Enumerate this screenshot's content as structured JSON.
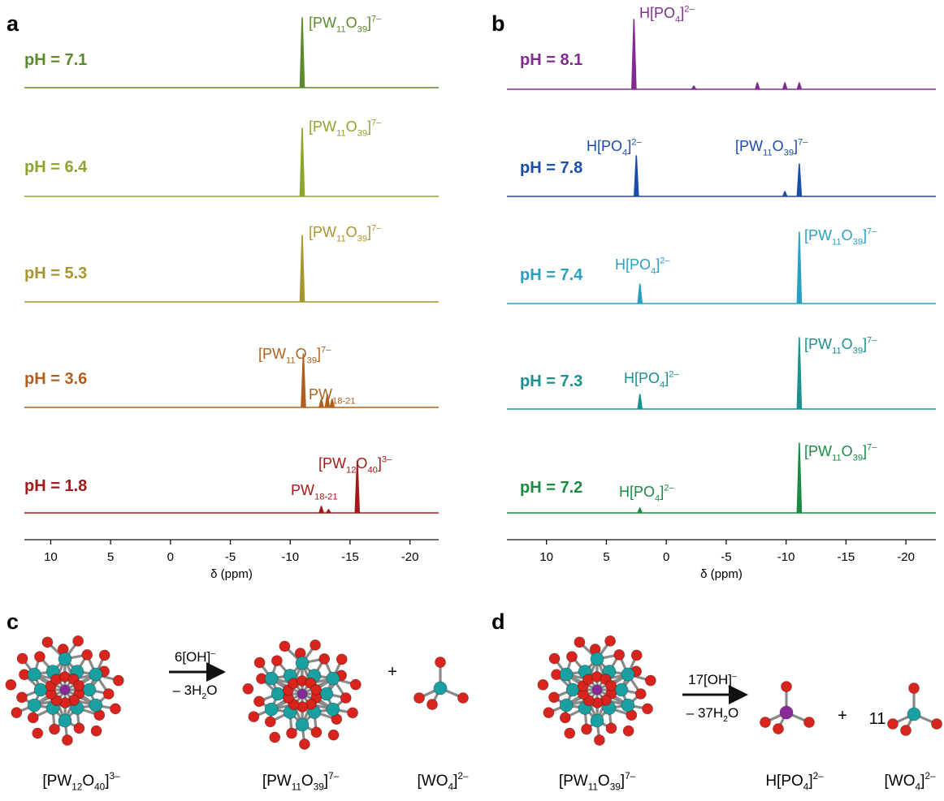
{
  "panel_labels": [
    "a",
    "b",
    "c",
    "d"
  ],
  "chart_data": [
    {
      "type": "spectrum",
      "x_label": "δ (ppm)",
      "xlim": [
        12.2,
        -22.4
      ],
      "xticks": [
        10,
        5,
        0,
        -5,
        -10,
        -15,
        -20
      ],
      "series": [
        {
          "name": "pH = 7.1",
          "color": "#5b8a2c",
          "x": [
            -11.0
          ],
          "values": [
            86
          ],
          "annotations": [
            [
              {
                "text": "[PW"
              },
              {
                "sub": "11"
              },
              {
                "text": "O"
              },
              {
                "sub": "39"
              },
              {
                "text": "]"
              },
              {
                "sup": "7–"
              }
            ]
          ]
        },
        {
          "name": "pH = 6.4",
          "color": "#8ca62c",
          "x": [
            -11.0
          ],
          "values": [
            84
          ],
          "annotations": [
            [
              {
                "text": "[PW"
              },
              {
                "sub": "11"
              },
              {
                "text": "O"
              },
              {
                "sub": "39"
              },
              {
                "text": "]"
              },
              {
                "sup": "7–"
              }
            ]
          ]
        },
        {
          "name": "pH = 5.3",
          "color": "#a8962c",
          "x": [
            -11.0
          ],
          "values": [
            82
          ],
          "annotations": [
            [
              {
                "text": "[PW"
              },
              {
                "sub": "11"
              },
              {
                "text": "O"
              },
              {
                "sub": "39"
              },
              {
                "text": "]"
              },
              {
                "sup": "7–"
              }
            ]
          ]
        },
        {
          "name": "pH = 3.6",
          "color": "#b0601c",
          "x": [
            -11.1,
            -12.6,
            -13.1,
            -13.5
          ],
          "values": [
            66,
            10,
            16,
            10
          ],
          "annotations": [
            [
              {
                "text": "[PW"
              },
              {
                "sub": "11"
              },
              {
                "text": "O"
              },
              {
                "sub": "39"
              },
              {
                "text": "]"
              },
              {
                "sup": "7–"
              }
            ],
            [
              {
                "text": "PW"
              },
              {
                "sub": "18-21"
              }
            ]
          ]
        },
        {
          "name": "pH = 1.8",
          "color": "#a01a1a",
          "x": [
            -12.6,
            -13.2,
            -15.6
          ],
          "values": [
            8,
            4,
            64
          ],
          "annotations": [
            [
              {
                "text": "[PW"
              },
              {
                "sub": "12"
              },
              {
                "text": "O"
              },
              {
                "sub": "40"
              },
              {
                "text": "]"
              },
              {
                "sup": "3–"
              }
            ],
            [
              {
                "text": "PW"
              },
              {
                "sub": "18-21"
              }
            ]
          ]
        }
      ]
    },
    {
      "type": "spectrum",
      "x_label": "δ (ppm)",
      "xlim": [
        13.3,
        -22.5
      ],
      "xticks": [
        10,
        5,
        0,
        -5,
        -10,
        -15,
        -20
      ],
      "series": [
        {
          "name": "pH = 8.1",
          "color": "#822c92",
          "x": [
            2.7,
            -2.3,
            -7.6,
            -9.9,
            -11.1
          ],
          "values": [
            86,
            4,
            8,
            8,
            8
          ],
          "annotations": [
            [
              {
                "text": "H[PO"
              },
              {
                "sub": "4"
              },
              {
                "text": "]"
              },
              {
                "sup": "2–"
              }
            ]
          ]
        },
        {
          "name": "pH = 7.8",
          "color": "#1c4caa",
          "x": [
            2.5,
            -9.9,
            -11.1
          ],
          "values": [
            50,
            6,
            40
          ],
          "annotations": [
            [
              {
                "text": "H[PO"
              },
              {
                "sub": "4"
              },
              {
                "text": "]"
              },
              {
                "sup": "2–"
              }
            ],
            [
              {
                "text": "[PW"
              },
              {
                "sub": "11"
              },
              {
                "text": "O"
              },
              {
                "sub": "39"
              },
              {
                "text": "]"
              },
              {
                "sup": "7–"
              }
            ]
          ]
        },
        {
          "name": "pH = 7.4",
          "color": "#2aa0c0",
          "x": [
            2.2,
            -11.1
          ],
          "values": [
            24,
            88
          ],
          "annotations": [
            [
              {
                "text": "H[PO"
              },
              {
                "sub": "4"
              },
              {
                "text": "]"
              },
              {
                "sup": "2–"
              }
            ],
            [
              {
                "text": "[PW"
              },
              {
                "sub": "11"
              },
              {
                "text": "O"
              },
              {
                "sub": "39"
              },
              {
                "text": "]"
              },
              {
                "sup": "7–"
              }
            ]
          ]
        },
        {
          "name": "pH = 7.3",
          "color": "#1a9090",
          "x": [
            2.2,
            -11.1
          ],
          "values": [
            18,
            88
          ],
          "annotations": [
            [
              {
                "text": "H[PO"
              },
              {
                "sub": "4"
              },
              {
                "text": "]"
              },
              {
                "sup": "2–"
              }
            ],
            [
              {
                "text": "[PW"
              },
              {
                "sub": "11"
              },
              {
                "text": "O"
              },
              {
                "sub": "39"
              },
              {
                "text": "]"
              },
              {
                "sup": "7–"
              }
            ]
          ]
        },
        {
          "name": "pH = 7.2",
          "color": "#1a8a42",
          "x": [
            2.2,
            -11.1
          ],
          "values": [
            6,
            86
          ],
          "annotations": [
            [
              {
                "text": "H[PO"
              },
              {
                "sub": "4"
              },
              {
                "text": "]"
              },
              {
                "sup": "2–"
              }
            ],
            [
              {
                "text": "[PW"
              },
              {
                "sub": "11"
              },
              {
                "text": "O"
              },
              {
                "sub": "39"
              },
              {
                "text": "]"
              },
              {
                "sup": "7–"
              }
            ]
          ]
        }
      ]
    }
  ],
  "schemes": [
    {
      "reagent": [
        {
          "text": "6[OH]"
        },
        {
          "sup": "–"
        }
      ],
      "byproduct": [
        {
          "text": "– 3H"
        },
        {
          "sub": "2"
        },
        {
          "text": "O"
        }
      ],
      "plus": "+",
      "labels": [
        [
          {
            "text": "[PW"
          },
          {
            "sub": "12"
          },
          {
            "text": "O"
          },
          {
            "sub": "40"
          },
          {
            "text": "]"
          },
          {
            "sup": "3–"
          }
        ],
        [
          {
            "text": "[PW"
          },
          {
            "sub": "11"
          },
          {
            "text": "O"
          },
          {
            "sub": "39"
          },
          {
            "text": "]"
          },
          {
            "sup": "7–"
          }
        ],
        [
          {
            "text": "[WO"
          },
          {
            "sub": "4"
          },
          {
            "text": "]"
          },
          {
            "sup": "2–"
          }
        ]
      ]
    },
    {
      "reagent": [
        {
          "text": "17[OH]"
        },
        {
          "sup": "–"
        }
      ],
      "byproduct": [
        {
          "text": "– 37H"
        },
        {
          "sub": "2"
        },
        {
          "text": "O"
        }
      ],
      "plus": "+",
      "coefficient": "11",
      "labels": [
        [
          {
            "text": "[PW"
          },
          {
            "sub": "11"
          },
          {
            "text": "O"
          },
          {
            "sub": "39"
          },
          {
            "text": "]"
          },
          {
            "sup": "7–"
          }
        ],
        [
          {
            "text": "H[PO"
          },
          {
            "sub": "4"
          },
          {
            "text": "]"
          },
          {
            "sup": "2–"
          }
        ],
        [
          {
            "text": "[WO"
          },
          {
            "sub": "4"
          },
          {
            "text": "]"
          },
          {
            "sup": "2–"
          }
        ]
      ]
    }
  ]
}
